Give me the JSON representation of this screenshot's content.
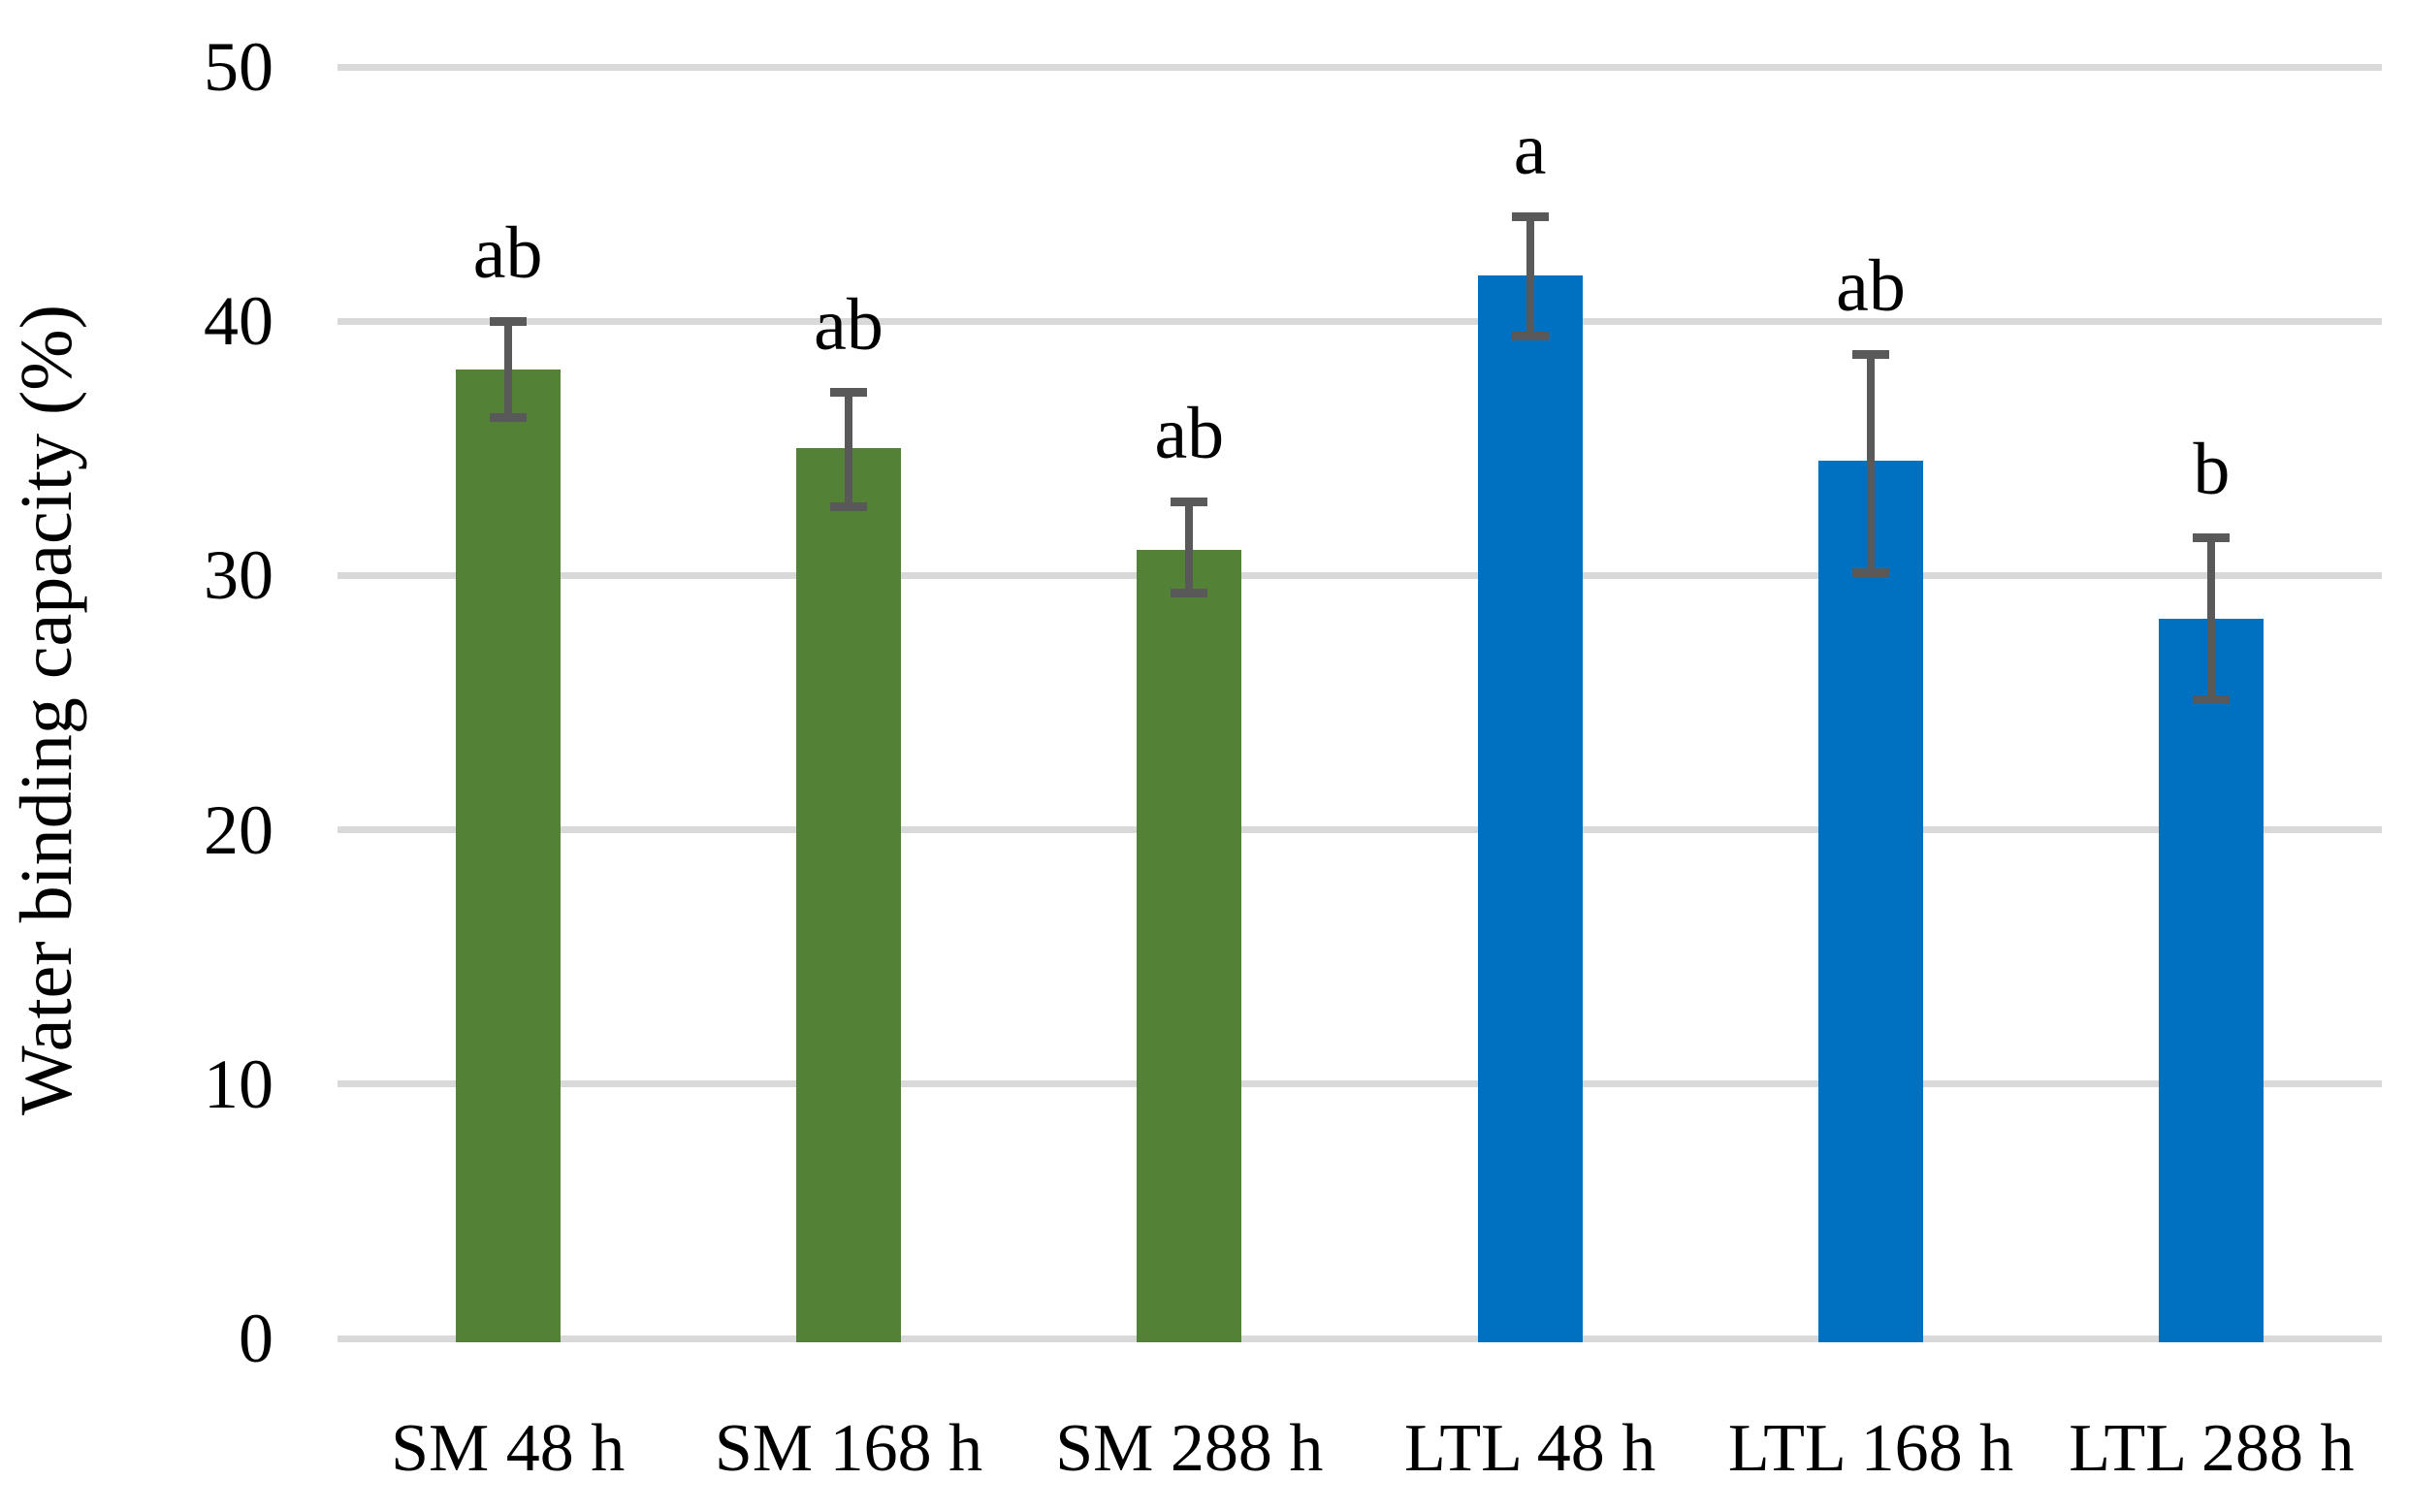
{
  "chart_data": {
    "type": "bar",
    "title": "",
    "xlabel": "",
    "ylabel": "Water binding capacity (%)",
    "categories": [
      "SM 48 h",
      "SM 168 h",
      "SM 288 h",
      "LTL 48 h",
      "LTL 168 h",
      "LTL 288 h"
    ],
    "values": [
      38.1,
      35.0,
      31.0,
      41.8,
      34.5,
      28.3
    ],
    "error_bars": {
      "upper": [
        40.0,
        37.2,
        32.9,
        44.1,
        38.7,
        31.5
      ],
      "lower": [
        36.2,
        32.7,
        29.3,
        39.4,
        30.1,
        25.1
      ]
    },
    "significance_letters": [
      "ab",
      "ab",
      "ab",
      "a",
      "ab",
      "b"
    ],
    "groups": [
      "SM",
      "SM",
      "SM",
      "LTL",
      "LTL",
      "LTL"
    ],
    "group_colors": {
      "SM": "#538135",
      "LTL": "#0070c0"
    },
    "ylim": [
      0,
      50
    ],
    "yticks": [
      0,
      10,
      20,
      30,
      40,
      50
    ],
    "grid": "horizontal",
    "gridline_color": "#d9d9d9",
    "error_bar_color": "#595959",
    "legend": "none"
  }
}
